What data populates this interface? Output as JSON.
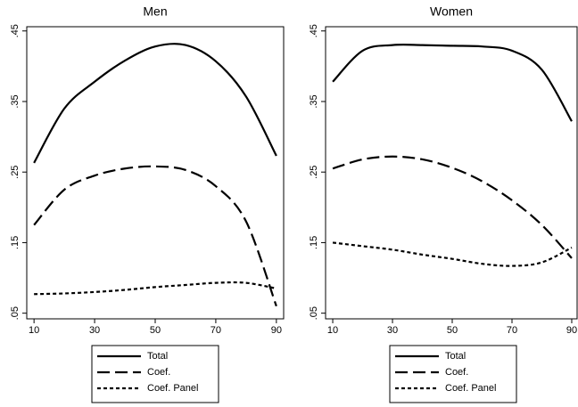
{
  "chart_data": [
    {
      "type": "line",
      "title": "Men",
      "x": [
        10,
        20,
        30,
        40,
        50,
        60,
        70,
        80,
        90
      ],
      "xlim": [
        7.6,
        92.4
      ],
      "xticks": [
        10,
        30,
        50,
        70,
        90
      ],
      "ylim": [
        0.042,
        0.456
      ],
      "yticks": [
        {
          "value": 0.05,
          "label": ".05"
        },
        {
          "value": 0.15,
          "label": ".15"
        },
        {
          "value": 0.25,
          "label": ".25"
        },
        {
          "value": 0.35,
          "label": ".35"
        },
        {
          "value": 0.45,
          "label": ".45"
        }
      ],
      "series": [
        {
          "name": "Total",
          "color": "#000000",
          "dash": "solid",
          "values": [
            0.263,
            0.34,
            0.378,
            0.408,
            0.428,
            0.43,
            0.407,
            0.357,
            0.273
          ]
        },
        {
          "name": "Coef.",
          "color": "#000000",
          "dash": "long",
          "values": [
            0.175,
            0.225,
            0.245,
            0.255,
            0.258,
            0.253,
            0.23,
            0.18,
            0.06
          ]
        },
        {
          "name": "Coef. Panel",
          "color": "#000000",
          "dash": "short",
          "values": [
            0.077,
            0.078,
            0.08,
            0.083,
            0.087,
            0.09,
            0.093,
            0.093,
            0.085
          ]
        }
      ]
    },
    {
      "type": "line",
      "title": "Women",
      "x": [
        10,
        20,
        30,
        40,
        50,
        60,
        70,
        80,
        90
      ],
      "xlim": [
        7.6,
        91.8
      ],
      "xticks": [
        10,
        30,
        50,
        70,
        90
      ],
      "ylim": [
        0.042,
        0.456
      ],
      "yticks": [
        {
          "value": 0.05,
          "label": ".05"
        },
        {
          "value": 0.15,
          "label": ".15"
        },
        {
          "value": 0.25,
          "label": ".25"
        },
        {
          "value": 0.35,
          "label": ".35"
        },
        {
          "value": 0.45,
          "label": ".45"
        }
      ],
      "series": [
        {
          "name": "Total",
          "color": "#000000",
          "dash": "solid",
          "values": [
            0.378,
            0.422,
            0.43,
            0.43,
            0.429,
            0.428,
            0.422,
            0.395,
            0.322
          ]
        },
        {
          "name": "Coef.",
          "color": "#000000",
          "dash": "long",
          "values": [
            0.255,
            0.268,
            0.272,
            0.268,
            0.256,
            0.237,
            0.21,
            0.175,
            0.128
          ]
        },
        {
          "name": "Coef. Panel",
          "color": "#000000",
          "dash": "short",
          "values": [
            0.15,
            0.145,
            0.14,
            0.133,
            0.127,
            0.12,
            0.117,
            0.122,
            0.143
          ]
        }
      ]
    }
  ]
}
